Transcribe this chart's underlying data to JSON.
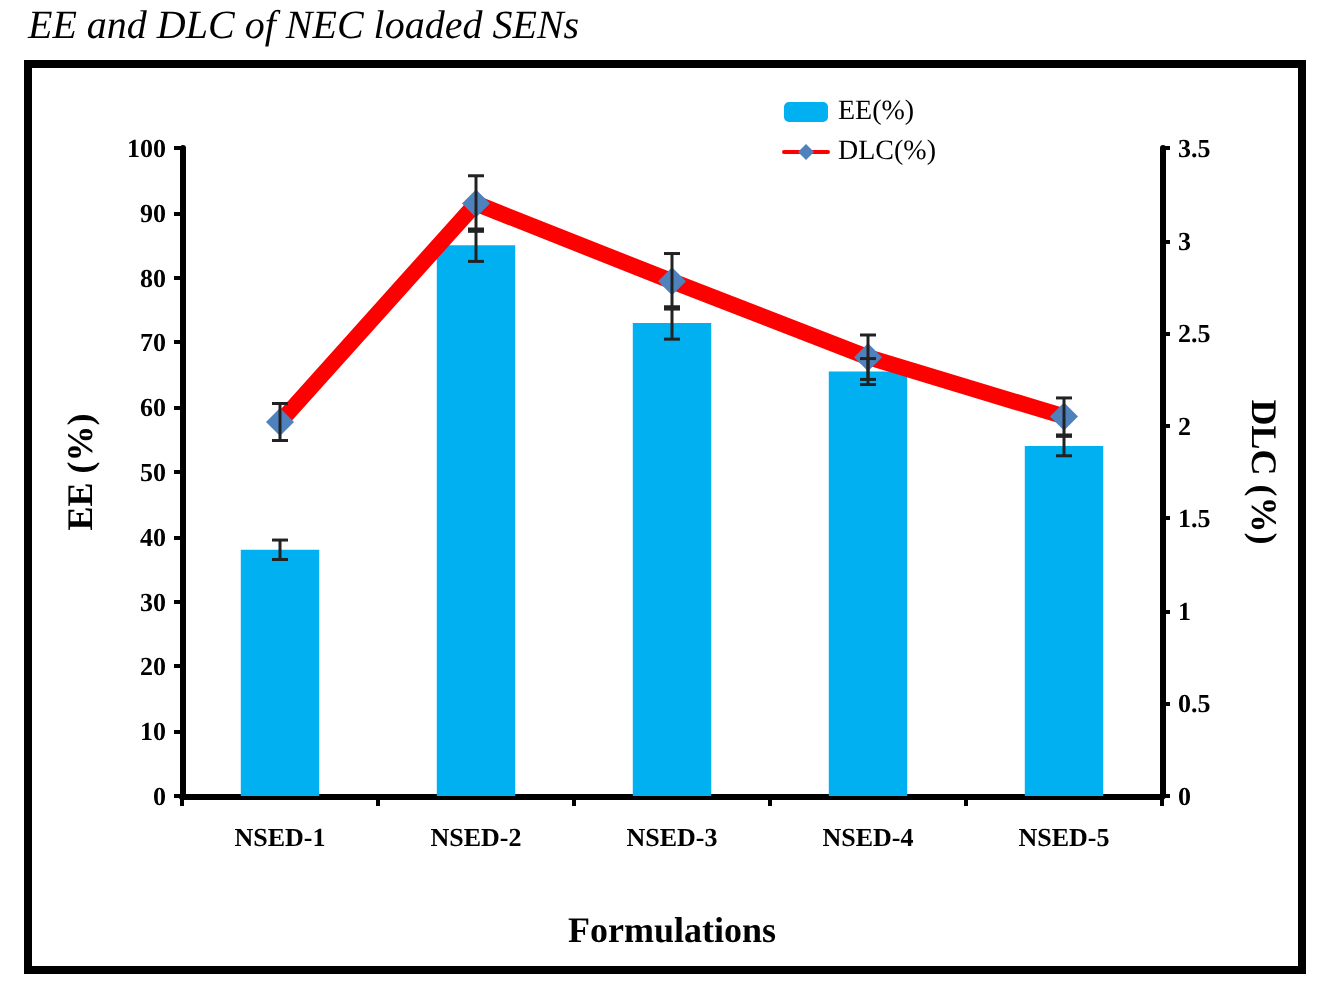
{
  "chart_data": {
    "type": "bar",
    "title": "EE and DLC of NEC loaded SENs",
    "xlabel": "Formulations",
    "ylabel": "EE (%)",
    "y2label": "DLC (%)",
    "categories": [
      "NSED-1",
      "NSED-2",
      "NSED-3",
      "NSED-4",
      "NSED-5"
    ],
    "series": [
      {
        "name": "EE(%)",
        "color": "#00b0f0",
        "values": [
          38,
          85,
          73,
          65.5,
          54
        ],
        "errors": [
          1.5,
          2.5,
          2.5,
          2,
          1.5
        ]
      },
      {
        "name": "DLC(%)",
        "type": "line",
        "axis": "y2",
        "color": "#ff0000",
        "marker": "diamond",
        "line_style": "solid",
        "values": [
          2.02,
          3.2,
          2.78,
          2.37,
          2.05
        ],
        "errors": [
          0.1,
          0.15,
          0.15,
          0.12,
          0.1
        ]
      }
    ],
    "ylim": [
      0,
      100
    ],
    "yticks": [
      0,
      10,
      20,
      30,
      40,
      50,
      60,
      70,
      80,
      90,
      100
    ],
    "y2lim": [
      0,
      3.5
    ],
    "y2ticks": [
      0,
      0.5,
      1,
      1.5,
      2,
      2.5,
      3,
      3.5
    ],
    "grid": false,
    "legend": "top"
  }
}
